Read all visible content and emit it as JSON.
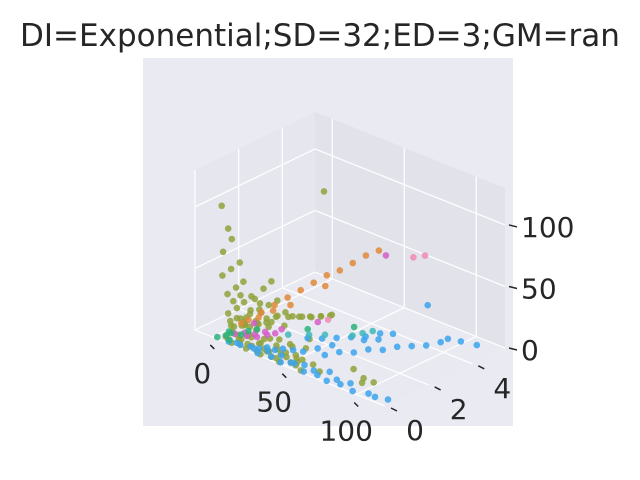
{
  "title": "DI=Exponential;SD=32;ED=3;GM=ran",
  "colors": {
    "axes_bg": "#eaeaf2",
    "pane_left": "#e6e6ef",
    "pane_back": "#e2e2eb",
    "pane_floor": "#e9e9f1",
    "grid": "#ffffff",
    "text": "#262626"
  },
  "chart_data": {
    "type": "scatter",
    "projection": "3d",
    "title": "DI=Exponential;SD=32;ED=3;GM=ran",
    "xlabel": "",
    "ylabel": "",
    "zlabel": "",
    "xlim": [
      -12,
      120
    ],
    "ylim": [
      0,
      5.5
    ],
    "zlim": [
      0,
      130
    ],
    "x_ticks": [
      "0",
      "50",
      "100"
    ],
    "y_ticks": [
      "0",
      "2",
      "4"
    ],
    "z_ticks": [
      "0",
      "50",
      "100"
    ],
    "grid": true,
    "legend": "none",
    "series": [
      {
        "color": "#8fa23a",
        "points": [
          [
            5,
            0.3,
            0
          ],
          [
            8,
            0.2,
            0
          ],
          [
            10,
            0.5,
            2
          ],
          [
            12,
            0.1,
            0
          ],
          [
            14,
            0.4,
            1
          ],
          [
            16,
            0.2,
            0
          ],
          [
            18,
            0.6,
            3
          ],
          [
            20,
            0.3,
            1
          ],
          [
            22,
            0.1,
            0
          ],
          [
            25,
            0.5,
            2
          ],
          [
            28,
            0.2,
            0
          ],
          [
            30,
            0.4,
            1
          ],
          [
            32,
            0.1,
            0
          ],
          [
            35,
            0.3,
            2
          ],
          [
            38,
            0.2,
            0
          ],
          [
            40,
            0.5,
            1
          ],
          [
            45,
            0.1,
            0
          ],
          [
            50,
            0.3,
            0
          ],
          [
            55,
            0.2,
            1
          ],
          [
            60,
            0.1,
            0
          ],
          [
            4,
            0.6,
            6
          ],
          [
            6,
            0.9,
            10
          ],
          [
            8,
            1.2,
            12
          ],
          [
            10,
            1.5,
            14
          ],
          [
            12,
            1.8,
            16
          ],
          [
            14,
            0.8,
            8
          ],
          [
            16,
            1.0,
            10
          ],
          [
            18,
            1.3,
            9
          ],
          [
            20,
            1.6,
            12
          ],
          [
            22,
            1.9,
            14
          ],
          [
            24,
            2.1,
            10
          ],
          [
            26,
            2.4,
            8
          ],
          [
            28,
            2.7,
            6
          ],
          [
            30,
            3.0,
            5
          ],
          [
            32,
            3.3,
            4
          ],
          [
            5,
            0.4,
            18
          ],
          [
            8,
            0.6,
            22
          ],
          [
            10,
            0.8,
            26
          ],
          [
            12,
            1.0,
            30
          ],
          [
            15,
            1.2,
            24
          ],
          [
            6,
            0.3,
            35
          ],
          [
            9,
            0.5,
            40
          ],
          [
            11,
            0.7,
            44
          ],
          [
            4,
            0.2,
            50
          ],
          [
            7,
            0.4,
            55
          ],
          [
            10,
            0.6,
            60
          ],
          [
            3,
            0.3,
            68
          ],
          [
            6,
            0.5,
            78
          ],
          [
            8,
            0.2,
            90
          ],
          [
            5,
            0.1,
            108
          ],
          [
            25,
            0.3,
            40
          ],
          [
            28,
            0.5,
            48
          ],
          [
            32,
            0.6,
            55
          ],
          [
            30,
            1.0,
            35
          ],
          [
            35,
            0.4,
            25
          ],
          [
            38,
            0.8,
            20
          ],
          [
            42,
            0.3,
            15
          ],
          [
            45,
            0.6,
            10
          ],
          [
            48,
            0.2,
            8
          ],
          [
            52,
            0.4,
            6
          ],
          [
            3,
            0.8,
            3
          ],
          [
            6,
            1.1,
            4
          ],
          [
            9,
            1.4,
            5
          ],
          [
            12,
            1.7,
            6
          ],
          [
            15,
            2.0,
            7
          ],
          [
            18,
            2.3,
            5
          ],
          [
            21,
            2.6,
            4
          ],
          [
            24,
            2.9,
            3
          ],
          [
            27,
            3.2,
            2
          ],
          [
            30,
            3.5,
            2
          ],
          [
            7,
            0.5,
            28
          ],
          [
            9,
            0.7,
            32
          ],
          [
            13,
            0.9,
            20
          ],
          [
            17,
            1.1,
            18
          ],
          [
            19,
            0.3,
            22
          ],
          [
            23,
            0.6,
            16
          ],
          [
            27,
            0.8,
            14
          ],
          [
            33,
            0.2,
            12
          ],
          [
            37,
            0.5,
            6
          ],
          [
            42,
            0.9,
            4
          ],
          [
            60,
            0.5,
            22
          ],
          [
            62,
            0.2,
            18
          ],
          [
            58,
            0.3,
            6
          ],
          [
            64,
            0.4,
            4
          ],
          [
            70,
            0.3,
            2
          ],
          [
            80,
            1.2,
            1
          ],
          [
            90,
            1.0,
            0
          ],
          [
            95,
            0.6,
            2
          ],
          [
            100,
            0.8,
            3
          ],
          [
            8,
            0.3,
            14
          ],
          [
            11,
            0.2,
            8
          ],
          [
            13,
            0.5,
            11
          ],
          [
            15,
            0.7,
            3
          ],
          [
            17,
            0.1,
            5
          ],
          [
            19,
            0.4,
            7
          ],
          [
            21,
            0.2,
            9
          ],
          [
            23,
            0.5,
            12
          ],
          [
            26,
            0.1,
            4
          ],
          [
            29,
            0.3,
            6
          ],
          [
            31,
            0.6,
            8
          ],
          [
            35,
            0.2,
            3
          ],
          [
            39,
            0.4,
            5
          ],
          [
            43,
            0.1,
            2
          ],
          [
            47,
            0.3,
            3
          ],
          [
            51,
            0.5,
            2
          ],
          [
            56,
            0.2,
            4
          ],
          [
            20,
            3.8,
            95
          ],
          [
            14,
            0.2,
            20
          ],
          [
            16,
            0.4,
            16
          ],
          [
            9,
            0.9,
            6
          ]
        ]
      },
      {
        "color": "#3ba3ec",
        "points": [
          [
            10,
            0.1,
            0
          ],
          [
            14,
            0.2,
            0
          ],
          [
            18,
            0.1,
            1
          ],
          [
            22,
            0.3,
            0
          ],
          [
            26,
            0.2,
            1
          ],
          [
            30,
            0.1,
            0
          ],
          [
            34,
            0.3,
            2
          ],
          [
            38,
            0.2,
            0
          ],
          [
            42,
            0.4,
            1
          ],
          [
            46,
            0.1,
            0
          ],
          [
            50,
            0.3,
            0
          ],
          [
            54,
            0.2,
            2
          ],
          [
            58,
            0.4,
            1
          ],
          [
            62,
            0.1,
            0
          ],
          [
            66,
            0.3,
            1
          ],
          [
            70,
            0.2,
            0
          ],
          [
            74,
            0.5,
            2
          ],
          [
            78,
            0.1,
            0
          ],
          [
            82,
            0.3,
            1
          ],
          [
            86,
            0.2,
            0
          ],
          [
            90,
            0.4,
            1
          ],
          [
            96,
            0.1,
            0
          ],
          [
            104,
            0.3,
            0
          ],
          [
            110,
            0.2,
            1
          ],
          [
            116,
            0.4,
            0
          ],
          [
            60,
            1.2,
            3
          ],
          [
            64,
            1.6,
            4
          ],
          [
            68,
            2.0,
            2
          ],
          [
            72,
            2.4,
            3
          ],
          [
            76,
            2.8,
            1
          ],
          [
            80,
            3.2,
            2
          ],
          [
            84,
            3.6,
            1
          ],
          [
            88,
            4.0,
            0
          ],
          [
            92,
            4.4,
            1
          ],
          [
            70,
            3.0,
            5
          ],
          [
            74,
            3.4,
            8
          ],
          [
            66,
            2.6,
            6
          ],
          [
            56,
            1.8,
            4
          ],
          [
            52,
            1.4,
            3
          ],
          [
            48,
            1.0,
            2
          ],
          [
            44,
            0.8,
            3
          ],
          [
            40,
            0.6,
            4
          ],
          [
            36,
            0.5,
            2
          ],
          [
            32,
            0.4,
            3
          ],
          [
            28,
            0.3,
            1
          ],
          [
            86,
            4.2,
            30
          ],
          [
            42,
            1.6,
            5
          ],
          [
            46,
            2.0,
            3
          ],
          [
            50,
            2.4,
            2
          ],
          [
            54,
            2.8,
            1
          ],
          [
            58,
            3.2,
            0
          ],
          [
            62,
            3.6,
            1
          ],
          [
            100,
            4.8,
            2
          ],
          [
            108,
            5.0,
            1
          ],
          [
            94,
            4.6,
            3
          ]
        ]
      },
      {
        "color": "#e0883a",
        "points": [
          [
            10,
            1.0,
            10
          ],
          [
            13,
            1.4,
            14
          ],
          [
            16,
            1.8,
            18
          ],
          [
            19,
            2.2,
            22
          ],
          [
            22,
            2.6,
            26
          ],
          [
            25,
            3.0,
            30
          ],
          [
            28,
            3.4,
            34
          ],
          [
            31,
            3.8,
            36
          ],
          [
            34,
            4.2,
            40
          ],
          [
            37,
            4.6,
            44
          ],
          [
            14,
            1.2,
            12
          ],
          [
            18,
            1.6,
            16
          ],
          [
            24,
            2.0,
            20
          ],
          [
            8,
            0.8,
            8
          ],
          [
            40,
            5.0,
            46
          ],
          [
            30,
            3.2,
            28
          ]
        ]
      },
      {
        "color": "#d45ec9",
        "points": [
          [
            8,
            0.5,
            2
          ],
          [
            12,
            0.7,
            3
          ],
          [
            16,
            0.9,
            2
          ],
          [
            20,
            1.1,
            4
          ],
          [
            24,
            1.3,
            3
          ],
          [
            18,
            0.4,
            6
          ],
          [
            22,
            0.6,
            5
          ],
          [
            26,
            0.8,
            7
          ],
          [
            14,
            1.0,
            9
          ],
          [
            30,
            1.2,
            10
          ],
          [
            60,
            4.0,
            60
          ],
          [
            40,
            2.2,
            12
          ]
        ]
      },
      {
        "color": "#2ab37a",
        "points": [
          [
            2,
            0.1,
            0
          ],
          [
            5,
            0.3,
            1
          ],
          [
            9,
            0.2,
            0
          ],
          [
            4,
            0.5,
            2
          ],
          [
            7,
            0.4,
            3
          ],
          [
            11,
            0.6,
            2
          ],
          [
            13,
            0.8,
            4
          ],
          [
            50,
            3.2,
            4
          ],
          [
            36,
            2.0,
            6
          ],
          [
            16,
            1.0,
            5
          ]
        ]
      },
      {
        "color": "#3db8b8",
        "points": [
          [
            62,
            2.8,
            8
          ],
          [
            66,
            3.0,
            10
          ],
          [
            40,
            1.8,
            5
          ],
          [
            45,
            2.2,
            4
          ],
          [
            30,
            1.5,
            3
          ],
          [
            58,
            2.6,
            6
          ]
        ]
      },
      {
        "color": "#f08ab4",
        "points": [
          [
            70,
            4.6,
            58
          ],
          [
            75,
            4.8,
            60
          ],
          [
            44,
            2.4,
            14
          ]
        ]
      }
    ]
  }
}
